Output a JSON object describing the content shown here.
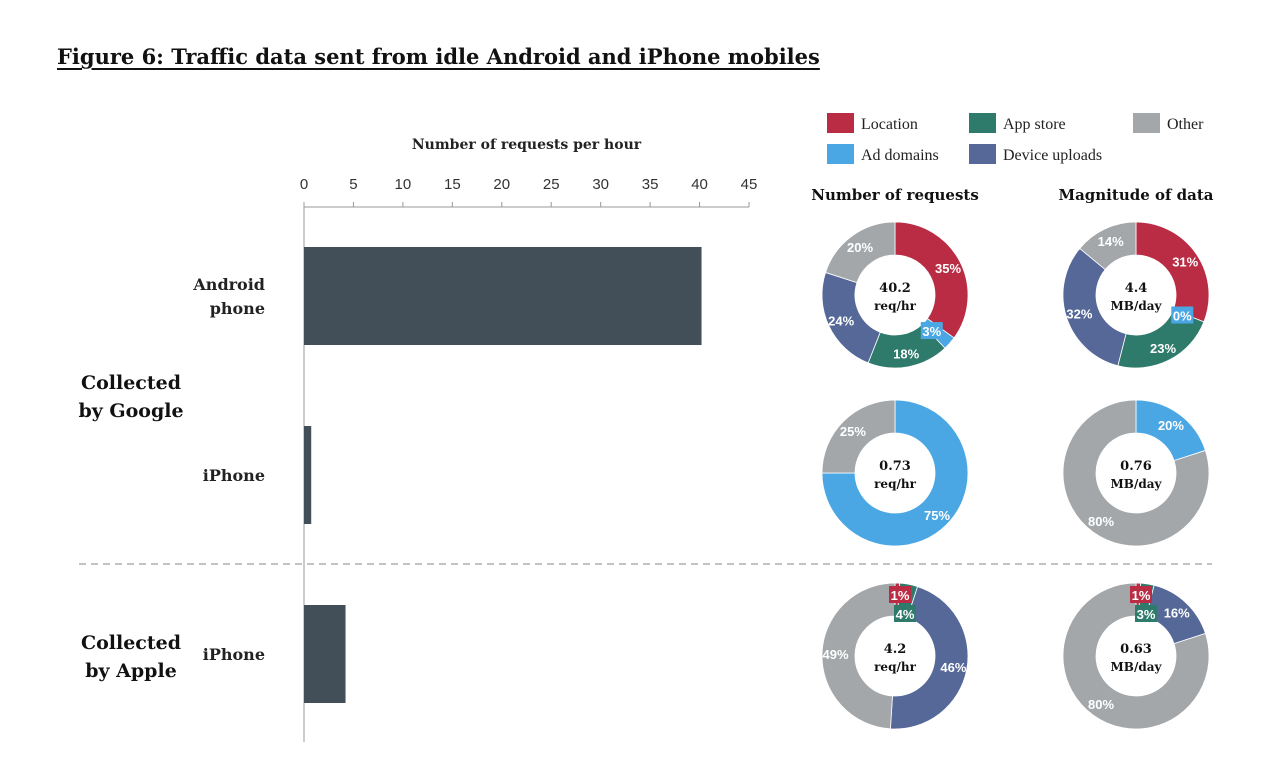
{
  "title": "Figure 6: Traffic data sent from idle Android and iPhone mobiles",
  "colors": {
    "location": "#b92c43",
    "app_store": "#2e7a6b",
    "other": "#a3a7aa",
    "ad_domains": "#4ba7e4",
    "device_uploads": "#556898",
    "bar": "#424e58",
    "axis": "#999999"
  },
  "legend": [
    {
      "key": "location",
      "label": "Location"
    },
    {
      "key": "app_store",
      "label": "App store"
    },
    {
      "key": "other",
      "label": "Other"
    },
    {
      "key": "ad_domains",
      "label": "Ad domains"
    },
    {
      "key": "device_uploads",
      "label": "Device uploads"
    }
  ],
  "group_labels": {
    "google": [
      "Collected",
      "by Google"
    ],
    "apple": [
      "Collected",
      "by Apple"
    ]
  },
  "chart_data": [
    {
      "type": "bar",
      "orientation": "horizontal",
      "title": "Number of requests per hour",
      "xlim": [
        0,
        45
      ],
      "xticks": [
        0,
        5,
        10,
        15,
        20,
        25,
        30,
        35,
        40,
        45
      ],
      "bars": [
        {
          "group": "Collected by Google",
          "label": [
            "Android",
            "phone"
          ],
          "value": 40.2
        },
        {
          "group": "Collected by Google",
          "label": [
            "iPhone"
          ],
          "value": 0.73
        },
        {
          "group": "Collected by Apple",
          "label": [
            "iPhone"
          ],
          "value": 4.2
        }
      ]
    },
    {
      "type": "pie",
      "column_title": "Number of requests",
      "rows": [
        {
          "center": [
            "40.2",
            "req/hr"
          ],
          "slices": [
            {
              "key": "location",
              "value": 35,
              "label": "35%"
            },
            {
              "key": "ad_domains",
              "value": 3,
              "label": "3%"
            },
            {
              "key": "app_store",
              "value": 18,
              "label": "18%"
            },
            {
              "key": "device_uploads",
              "value": 24,
              "label": "24%"
            },
            {
              "key": "other",
              "value": 20,
              "label": "20%"
            }
          ]
        },
        {
          "center": [
            "0.73",
            "req/hr"
          ],
          "slices": [
            {
              "key": "ad_domains",
              "value": 75,
              "label": "75%"
            },
            {
              "key": "other",
              "value": 25,
              "label": "25%"
            }
          ]
        },
        {
          "center": [
            "4.2",
            "req/hr"
          ],
          "slices": [
            {
              "key": "location",
              "value": 1,
              "label": "1%"
            },
            {
              "key": "app_store",
              "value": 4,
              "label": "4%"
            },
            {
              "key": "device_uploads",
              "value": 46,
              "label": "46%"
            },
            {
              "key": "other",
              "value": 49,
              "label": "49%"
            }
          ]
        }
      ]
    },
    {
      "type": "pie",
      "column_title": "Magnitude of data",
      "rows": [
        {
          "center": [
            "4.4",
            "MB/day"
          ],
          "slices": [
            {
              "key": "location",
              "value": 31,
              "label": "31%"
            },
            {
              "key": "ad_domains",
              "value": 0,
              "label": "0%"
            },
            {
              "key": "app_store",
              "value": 23,
              "label": "23%"
            },
            {
              "key": "device_uploads",
              "value": 32,
              "label": "32%"
            },
            {
              "key": "other",
              "value": 14,
              "label": "14%"
            }
          ]
        },
        {
          "center": [
            "0.76",
            "MB/day"
          ],
          "slices": [
            {
              "key": "ad_domains",
              "value": 20,
              "label": "20%"
            },
            {
              "key": "other",
              "value": 80,
              "label": "80%"
            }
          ]
        },
        {
          "center": [
            "0.63",
            "MB/day"
          ],
          "slices": [
            {
              "key": "location",
              "value": 1,
              "label": "1%"
            },
            {
              "key": "app_store",
              "value": 3,
              "label": "3%"
            },
            {
              "key": "device_uploads",
              "value": 16,
              "label": "16%"
            },
            {
              "key": "other",
              "value": 80,
              "label": "80%"
            }
          ]
        }
      ]
    }
  ]
}
